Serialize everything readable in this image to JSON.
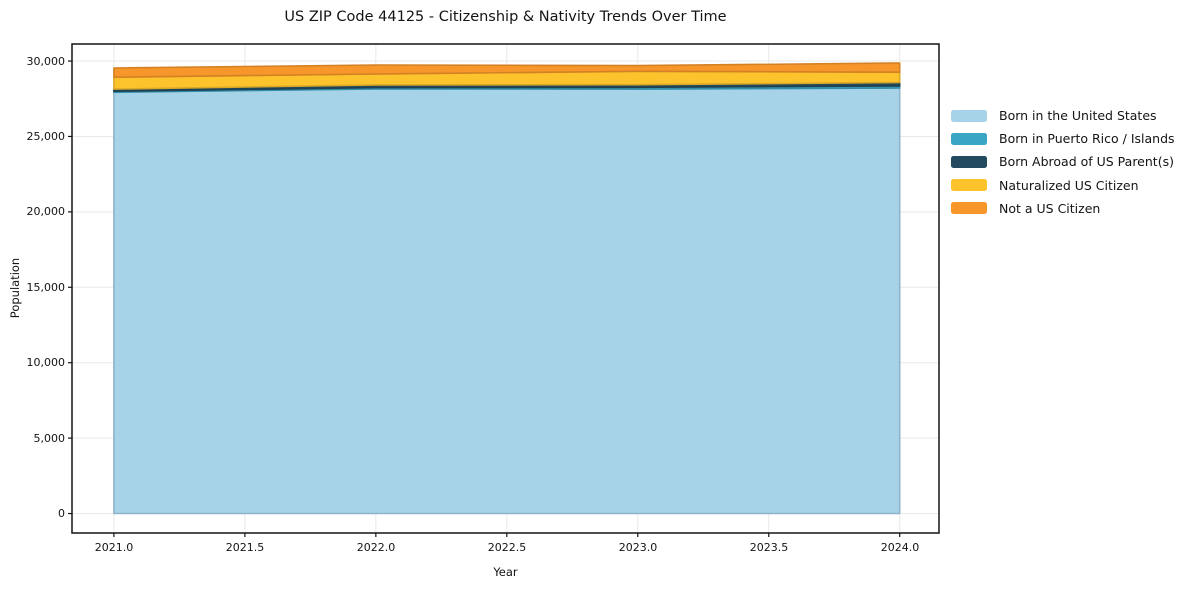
{
  "chart_data": {
    "type": "area",
    "stacked": true,
    "title": "US ZIP Code 44125 - Citizenship & Nativity Trends Over Time",
    "xlabel": "Year",
    "ylabel": "Population",
    "x": [
      2021,
      2022,
      2023,
      2024
    ],
    "series": [
      {
        "name": "Born in the United States",
        "color": "#A7D3E8",
        "values": [
          27930,
          28150,
          28140,
          28210
        ]
      },
      {
        "name": "Born in Puerto Rico / Islands",
        "color": "#3AA5C5",
        "values": [
          70,
          90,
          120,
          140
        ]
      },
      {
        "name": "Born Abroad of US Parent(s)",
        "color": "#234A5E",
        "values": [
          140,
          180,
          170,
          230
        ]
      },
      {
        "name": "Naturalized US Citizen",
        "color": "#FDC32D",
        "values": [
          790,
          720,
          890,
          680
        ]
      },
      {
        "name": "Not a US Citizen",
        "color": "#F7962A",
        "values": [
          610,
          600,
          380,
          610
        ]
      }
    ],
    "totals": [
      29540,
      29740,
      29700,
      29870
    ],
    "xlim": [
      2020.84,
      2024.15
    ],
    "ylim": [
      -1290,
      31130
    ],
    "xticks": [
      2021.0,
      2021.5,
      2022.0,
      2022.5,
      2023.0,
      2023.5,
      2024.0
    ],
    "xtick_labels": [
      "2021.0",
      "2021.5",
      "2022.0",
      "2022.5",
      "2023.0",
      "2023.5",
      "2024.0"
    ],
    "yticks": [
      0,
      5000,
      10000,
      15000,
      20000,
      25000,
      30000
    ],
    "ytick_labels": [
      "0",
      "5,000",
      "10,000",
      "15,000",
      "20,000",
      "25,000",
      "30,000"
    ],
    "grid": true,
    "legend_position": "right-outside",
    "colors": {
      "background": "#FFFFFF",
      "gridline": "#E9E9E9",
      "spine": "#141414",
      "text": "#141414"
    }
  }
}
